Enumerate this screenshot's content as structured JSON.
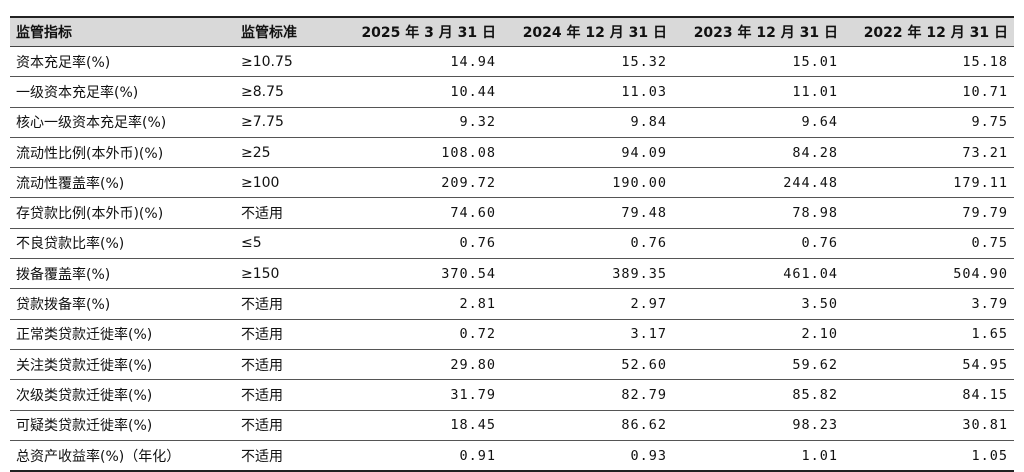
{
  "table": {
    "headers": [
      "监管指标",
      "监管标准",
      "2025 年 3 月 31 日",
      "2024 年 12 月 31 日",
      "2023 年 12 月 31 日",
      "2022 年 12 月 31 日"
    ],
    "rows": [
      {
        "name": "资本充足率(%)",
        "standard": "≥10.75",
        "values": [
          "14.94",
          "15.32",
          "15.01",
          "15.18"
        ]
      },
      {
        "name": "一级资本充足率(%)",
        "standard": "≥8.75",
        "values": [
          "10.44",
          "11.03",
          "11.01",
          "10.71"
        ]
      },
      {
        "name": "核心一级资本充足率(%)",
        "standard": "≥7.75",
        "values": [
          "9.32",
          "9.84",
          "9.64",
          "9.75"
        ]
      },
      {
        "name": "流动性比例(本外币)(%)",
        "standard": "≥25",
        "values": [
          "108.08",
          "94.09",
          "84.28",
          "73.21"
        ]
      },
      {
        "name": "流动性覆盖率(%)",
        "standard": "≥100",
        "values": [
          "209.72",
          "190.00",
          "244.48",
          "179.11"
        ]
      },
      {
        "name": "存贷款比例(本外币)(%)",
        "standard": "不适用",
        "values": [
          "74.60",
          "79.48",
          "78.98",
          "79.79"
        ]
      },
      {
        "name": "不良贷款比率(%)",
        "standard": "≤5",
        "values": [
          "0.76",
          "0.76",
          "0.76",
          "0.75"
        ]
      },
      {
        "name": "拨备覆盖率(%)",
        "standard": "≥150",
        "values": [
          "370.54",
          "389.35",
          "461.04",
          "504.90"
        ]
      },
      {
        "name": "贷款拨备率(%)",
        "standard": "不适用",
        "values": [
          "2.81",
          "2.97",
          "3.50",
          "3.79"
        ]
      },
      {
        "name": "正常类贷款迁徙率(%)",
        "standard": "不适用",
        "values": [
          "0.72",
          "3.17",
          "2.10",
          "1.65"
        ]
      },
      {
        "name": "关注类贷款迁徙率(%)",
        "standard": "不适用",
        "values": [
          "29.80",
          "52.60",
          "59.62",
          "54.95"
        ]
      },
      {
        "name": "次级类贷款迁徙率(%)",
        "standard": "不适用",
        "values": [
          "31.79",
          "82.79",
          "85.82",
          "84.15"
        ]
      },
      {
        "name": "可疑类贷款迁徙率(%)",
        "standard": "不适用",
        "values": [
          "18.45",
          "86.62",
          "98.23",
          "30.81"
        ]
      },
      {
        "name": "总资产收益率(%)（年化）",
        "standard": "不适用",
        "values": [
          "0.91",
          "0.93",
          "1.01",
          "1.05"
        ]
      }
    ]
  }
}
